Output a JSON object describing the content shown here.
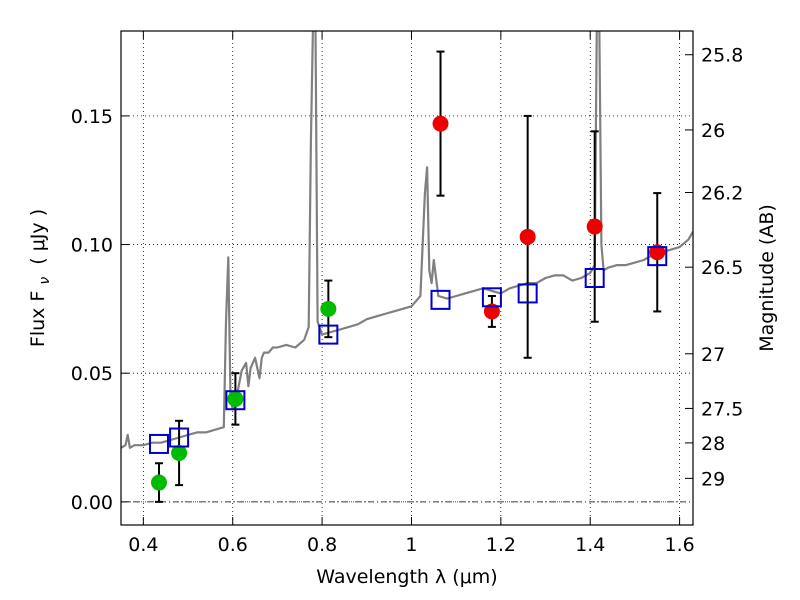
{
  "chart_data": {
    "type": "scatter",
    "xlabel": "Wavelength  λ (μm)",
    "ylabel_left": "Flux  F",
    "ylabel_left_sub": "ν",
    "ylabel_left_units": "( μJy )",
    "ylabel_right": "Magnitude (AB)",
    "xlim": [
      0.35,
      1.63
    ],
    "ylim": [
      -0.009,
      0.183
    ],
    "grid": true,
    "x_ticks": [
      {
        "value": 0.4,
        "label": "0.4"
      },
      {
        "value": 0.6,
        "label": "0.6"
      },
      {
        "value": 0.8,
        "label": "0.8"
      },
      {
        "value": 1.0,
        "label": "1"
      },
      {
        "value": 1.2,
        "label": "1.2"
      },
      {
        "value": 1.4,
        "label": "1.4"
      },
      {
        "value": 1.6,
        "label": "1.6"
      }
    ],
    "y_ticks": [
      {
        "value": 0.0,
        "label": "0.00"
      },
      {
        "value": 0.05,
        "label": "0.05"
      },
      {
        "value": 0.1,
        "label": "0.10"
      },
      {
        "value": 0.15,
        "label": "0.15"
      }
    ],
    "right_ticks": [
      {
        "label": "25.8"
      },
      {
        "label": "26"
      },
      {
        "label": "26.2"
      },
      {
        "label": "26.5"
      },
      {
        "label": "27"
      },
      {
        "label": "27.5"
      },
      {
        "label": "28"
      },
      {
        "label": "29"
      }
    ],
    "colors": {
      "model": "#808080",
      "green": "#00bb00",
      "red": "#ee0000",
      "box": "#0000cc",
      "errorbar": "#000000"
    },
    "series": [
      {
        "name": "model-spectrum",
        "kind": "line",
        "x": [
          0.35,
          0.36,
          0.365,
          0.37,
          0.38,
          0.4,
          0.42,
          0.44,
          0.46,
          0.48,
          0.5,
          0.52,
          0.54,
          0.56,
          0.58,
          0.585,
          0.59,
          0.595,
          0.6,
          0.61,
          0.62,
          0.63,
          0.635,
          0.64,
          0.65,
          0.66,
          0.665,
          0.67,
          0.68,
          0.69,
          0.7,
          0.72,
          0.74,
          0.76,
          0.77,
          0.775,
          0.78,
          0.785,
          0.79,
          0.8,
          0.82,
          0.84,
          0.86,
          0.88,
          0.9,
          0.92,
          0.94,
          0.96,
          0.98,
          1.0,
          1.02,
          1.03,
          1.035,
          1.04,
          1.045,
          1.05,
          1.06,
          1.08,
          1.1,
          1.12,
          1.14,
          1.16,
          1.18,
          1.2,
          1.22,
          1.24,
          1.26,
          1.28,
          1.3,
          1.32,
          1.34,
          1.36,
          1.38,
          1.4,
          1.41,
          1.415,
          1.42,
          1.425,
          1.43,
          1.44,
          1.46,
          1.48,
          1.5,
          1.52,
          1.54,
          1.56,
          1.58,
          1.6,
          1.62,
          1.63
        ],
        "y": [
          0.021,
          0.022,
          0.026,
          0.021,
          0.022,
          0.022,
          0.023,
          0.023,
          0.024,
          0.025,
          0.026,
          0.027,
          0.027,
          0.028,
          0.029,
          0.07,
          0.095,
          0.04,
          0.036,
          0.042,
          0.051,
          0.054,
          0.045,
          0.052,
          0.056,
          0.048,
          0.056,
          0.058,
          0.058,
          0.06,
          0.06,
          0.061,
          0.06,
          0.063,
          0.068,
          0.14,
          0.19,
          0.19,
          0.07,
          0.065,
          0.066,
          0.067,
          0.068,
          0.069,
          0.071,
          0.072,
          0.073,
          0.074,
          0.075,
          0.076,
          0.08,
          0.12,
          0.13,
          0.09,
          0.085,
          0.094,
          0.08,
          0.079,
          0.08,
          0.081,
          0.082,
          0.083,
          0.082,
          0.081,
          0.083,
          0.084,
          0.085,
          0.085,
          0.087,
          0.088,
          0.088,
          0.086,
          0.087,
          0.089,
          0.092,
          0.19,
          0.19,
          0.1,
          0.09,
          0.091,
          0.092,
          0.092,
          0.093,
          0.094,
          0.096,
          0.097,
          0.098,
          0.099,
          0.102,
          0.105
        ]
      },
      {
        "name": "green-points",
        "kind": "points",
        "color_key": "green",
        "points": [
          {
            "x": 0.435,
            "y": 0.0075,
            "err_lo": 0.0075,
            "err_hi": 0.0075
          },
          {
            "x": 0.48,
            "y": 0.019,
            "err_lo": 0.0125,
            "err_hi": 0.0125
          },
          {
            "x": 0.606,
            "y": 0.04,
            "err_lo": 0.01,
            "err_hi": 0.01
          },
          {
            "x": 0.814,
            "y": 0.075,
            "err_lo": 0.011,
            "err_hi": 0.011
          }
        ]
      },
      {
        "name": "red-points",
        "kind": "points",
        "color_key": "red",
        "points": [
          {
            "x": 1.065,
            "y": 0.147,
            "err_lo": 0.028,
            "err_hi": 0.028
          },
          {
            "x": 1.18,
            "y": 0.074,
            "err_lo": 0.006,
            "err_hi": 0.006
          },
          {
            "x": 1.26,
            "y": 0.103,
            "err_lo": 0.047,
            "err_hi": 0.047
          },
          {
            "x": 1.41,
            "y": 0.107,
            "err_lo": 0.037,
            "err_hi": 0.037
          },
          {
            "x": 1.55,
            "y": 0.097,
            "err_lo": 0.023,
            "err_hi": 0.023
          }
        ]
      },
      {
        "name": "model-boxes",
        "kind": "boxes",
        "color_key": "box",
        "points": [
          {
            "x": 0.435,
            "y": 0.0225
          },
          {
            "x": 0.48,
            "y": 0.025
          },
          {
            "x": 0.606,
            "y": 0.0395
          },
          {
            "x": 0.814,
            "y": 0.065
          },
          {
            "x": 1.065,
            "y": 0.0785
          },
          {
            "x": 1.18,
            "y": 0.0795
          },
          {
            "x": 1.26,
            "y": 0.081
          },
          {
            "x": 1.41,
            "y": 0.087
          },
          {
            "x": 1.55,
            "y": 0.0955
          }
        ]
      }
    ]
  }
}
